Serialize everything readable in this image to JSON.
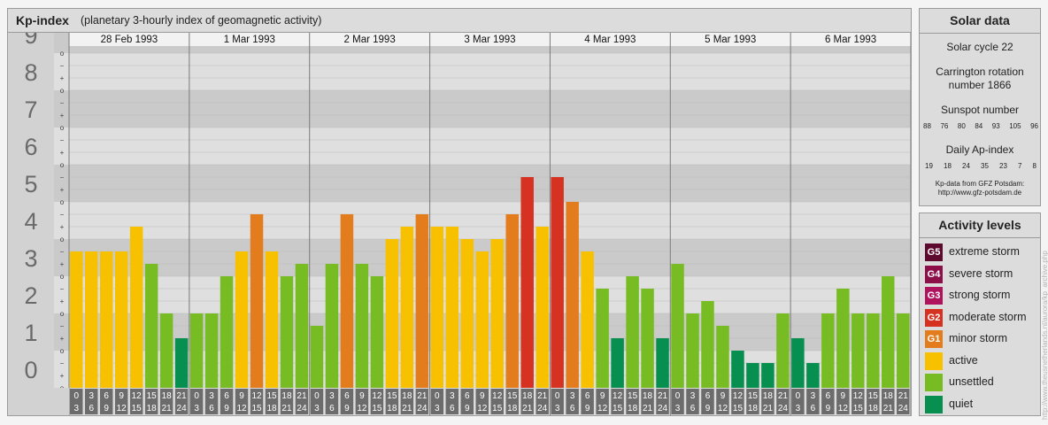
{
  "header": {
    "title": "Kp-index",
    "subtitle": "(planetary 3-hourly index of geomagnetic activity)"
  },
  "chart_data": {
    "type": "bar",
    "title": "Kp-index",
    "subtitle": "(planetary 3-hourly index of geomagnetic activity)",
    "ylim": [
      0,
      9.3
    ],
    "y_ticks": [
      "0",
      "1",
      "2",
      "3",
      "4",
      "5",
      "6",
      "7",
      "8",
      "9"
    ],
    "minor_ticks": [
      "o",
      "+",
      "−"
    ],
    "days": [
      "28 Feb 1993",
      "1 Mar 1993",
      "2 Mar 1993",
      "3 Mar 1993",
      "4 Mar 1993",
      "5 Mar 1993",
      "6 Mar 1993"
    ],
    "interval_labels": [
      {
        "start": "0",
        "end": "3"
      },
      {
        "start": "3",
        "end": "6"
      },
      {
        "start": "6",
        "end": "9"
      },
      {
        "start": "9",
        "end": "12"
      },
      {
        "start": "12",
        "end": "15"
      },
      {
        "start": "15",
        "end": "18"
      },
      {
        "start": "18",
        "end": "21"
      },
      {
        "start": "21",
        "end": "24"
      }
    ],
    "values": [
      [
        3.667,
        3.667,
        3.667,
        3.667,
        4.333,
        3.333,
        2.0,
        1.333
      ],
      [
        2.0,
        2.0,
        3.0,
        3.667,
        4.667,
        3.667,
        3.0,
        3.333
      ],
      [
        1.667,
        3.333,
        4.667,
        3.333,
        3.0,
        4.0,
        4.333,
        4.667
      ],
      [
        4.333,
        4.333,
        4.0,
        3.667,
        4.0,
        4.667,
        5.667,
        4.333
      ],
      [
        5.667,
        5.0,
        3.667,
        2.667,
        1.333,
        3.0,
        2.667,
        1.333
      ],
      [
        3.333,
        2.0,
        2.333,
        1.667,
        1.0,
        0.667,
        0.667,
        2.0
      ],
      [
        1.333,
        0.667,
        2.0,
        2.667,
        2.0,
        2.0,
        3.0,
        2.0
      ]
    ],
    "level_colors": {
      "quiet": "#078f4f",
      "unsettled": "#78bc24",
      "active": "#f8c100",
      "minor storm": "#e37c1d",
      "moderate storm": "#d53221",
      "strong storm": "#b0135e",
      "severe storm": "#8c0f4a",
      "extreme storm": "#5d0a2e"
    },
    "colors": {
      "band_light": "#dfdfdf",
      "band_dark": "#cacaca",
      "axis_box": "#d2d2d2",
      "axis_text": "#6a6a6a",
      "time_box": "#6c6c6c"
    },
    "grid": true,
    "legend": "right"
  },
  "solar": {
    "title": "Solar data",
    "cycle": "Solar cycle 22",
    "carrington_1": "Carrington rotation",
    "carrington_2": "number 1866",
    "sunspot_label": "Sunspot number",
    "sunspot_values": [
      "88",
      "76",
      "80",
      "84",
      "93",
      "105",
      "96"
    ],
    "ap_label": "Daily Ap-index",
    "ap_values": [
      "19",
      "18",
      "24",
      "35",
      "23",
      "7",
      "8"
    ],
    "source_1": "Kp-data from GFZ Potsdam:",
    "source_2": "http://www.gfz-potsdam.de"
  },
  "activity": {
    "title": "Activity levels",
    "levels": [
      {
        "code": "G5",
        "label": "extreme storm",
        "color": "#5d0a2e"
      },
      {
        "code": "G4",
        "label": "severe storm",
        "color": "#8c0f4a"
      },
      {
        "code": "G3",
        "label": "strong storm",
        "color": "#b0135e"
      },
      {
        "code": "G2",
        "label": "moderate storm",
        "color": "#d53221"
      },
      {
        "code": "G1",
        "label": "minor storm",
        "color": "#e37c1d"
      },
      {
        "code": "",
        "label": "active",
        "color": "#f8c100"
      },
      {
        "code": "",
        "label": "unsettled",
        "color": "#78bc24"
      },
      {
        "code": "",
        "label": "quiet",
        "color": "#078f4f"
      }
    ]
  },
  "watermark": "http://www.theusnetherlands.nl/aurora/kp_archive.php"
}
